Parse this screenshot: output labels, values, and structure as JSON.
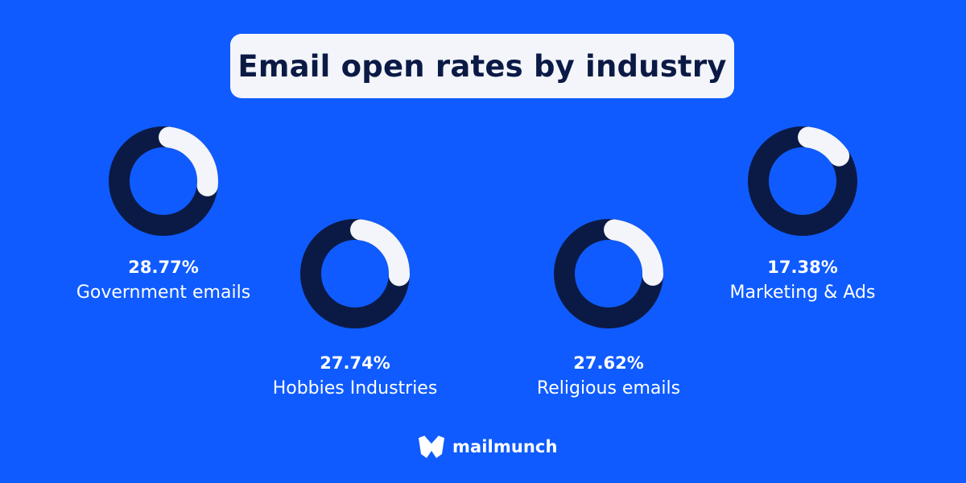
{
  "title": "Email open rates by industry",
  "colors": {
    "background": "#0f5bff",
    "ring_track": "#0b1a45",
    "ring_value": "#f3f5fa",
    "title_box": "#f3f5fa",
    "title_text": "#0b1a45"
  },
  "brand": {
    "name": "mailmunch",
    "icon": "mailmunch-logo-icon"
  },
  "chart_data": {
    "type": "pie",
    "items": [
      {
        "label": "Government emails",
        "value_text": "28.77%",
        "value": 28.77
      },
      {
        "label": "Hobbies Industries",
        "value_text": "27.74%",
        "value": 27.74
      },
      {
        "label": "Religious emails",
        "value_text": "27.62%",
        "value": 27.62
      },
      {
        "label": "Marketing & Ads",
        "value_text": "17.38%",
        "value": 17.38
      }
    ]
  }
}
